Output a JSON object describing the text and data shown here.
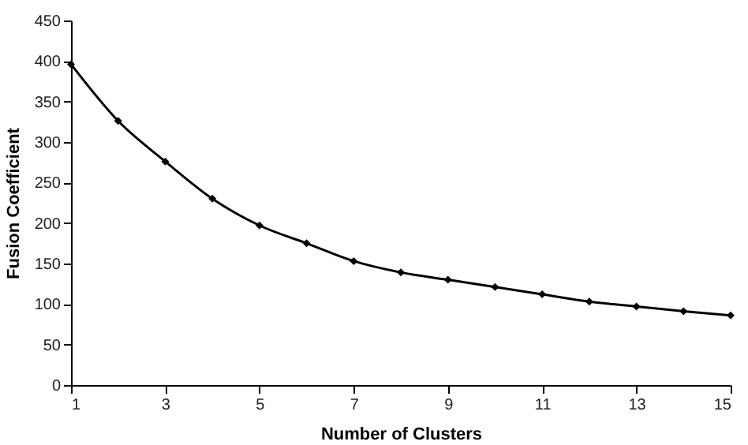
{
  "chart_data": {
    "type": "line",
    "xlabel": "Number of Clusters",
    "ylabel": "Fusion Coefficient",
    "x": [
      1,
      2,
      3,
      4,
      5,
      6,
      7,
      8,
      9,
      10,
      11,
      12,
      13,
      14,
      15
    ],
    "series": [
      {
        "color": "#000000",
        "values": [
          396,
          326,
          276,
          230,
          197,
          175,
          153,
          139,
          130,
          121,
          112,
          103,
          97,
          91,
          86
        ]
      }
    ],
    "xlim": [
      1,
      15
    ],
    "xticks": [
      1,
      3,
      5,
      7,
      9,
      11,
      13,
      15
    ],
    "ylim": [
      0,
      450
    ],
    "yticks": [
      0,
      50,
      100,
      150,
      200,
      250,
      300,
      350,
      400,
      450
    ],
    "grid": false,
    "marker": "diamond",
    "line_style": "solid"
  }
}
